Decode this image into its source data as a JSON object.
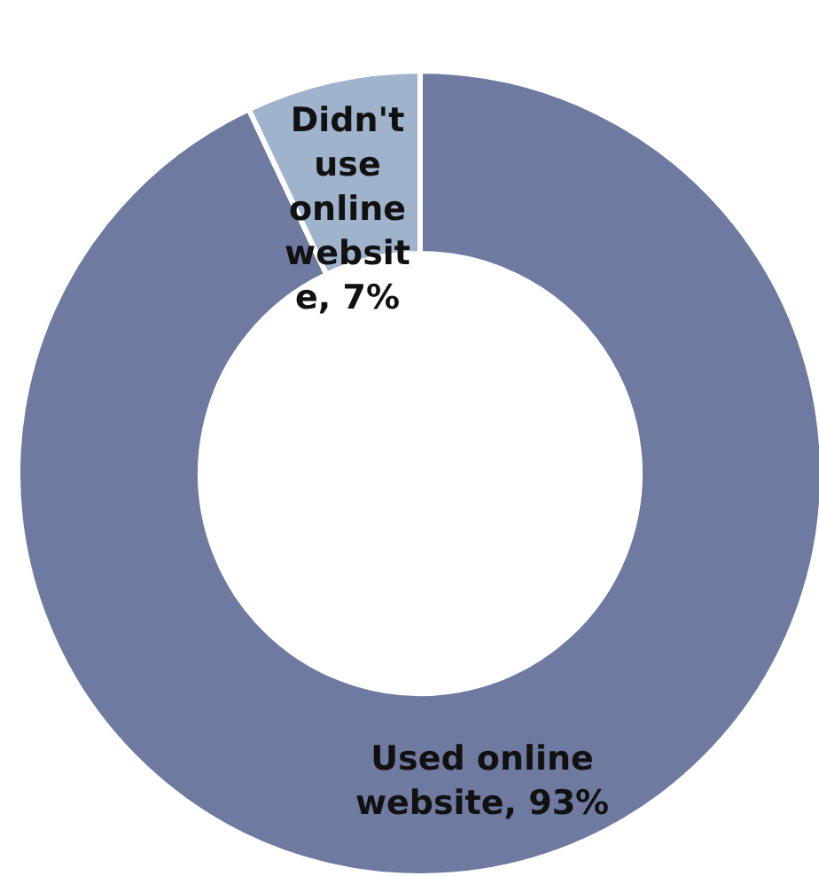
{
  "chart_data": {
    "type": "donut",
    "categories": [
      "Used online website",
      "Didn't use online website"
    ],
    "values": [
      93,
      7
    ],
    "colors": [
      "#6f7aa0",
      "#9fb3cc"
    ],
    "value_labels": [
      "93%",
      "7%"
    ]
  }
}
